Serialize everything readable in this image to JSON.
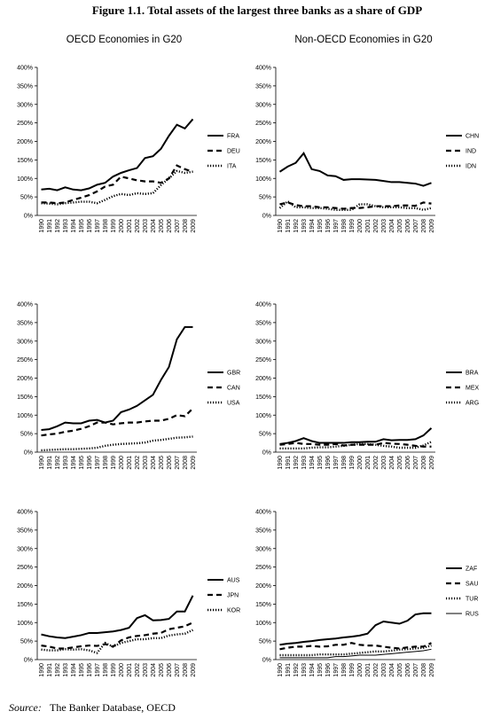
{
  "title": "Figure 1.1. Total assets of the largest three banks as a share of GDP",
  "column_titles": [
    "OECD Economies in G20",
    "Non-OECD Economies in G20"
  ],
  "source_label": "Source:",
  "source": "The Banker Database, OECD",
  "chart_data": [
    {
      "type": "line",
      "categories": [
        "1990",
        "1991",
        "1992",
        "1993",
        "1994",
        "1995",
        "1996",
        "1997",
        "1998",
        "1999",
        "2000",
        "2001",
        "2002",
        "2003",
        "2004",
        "2005",
        "2006",
        "2007",
        "2008",
        "2009"
      ],
      "ylim": [
        0,
        400
      ],
      "yticks": [
        {
          "value": 0,
          "label": "0%"
        },
        {
          "value": 50,
          "label": "50%"
        },
        {
          "value": 100,
          "label": "100%"
        },
        {
          "value": 150,
          "label": "150%"
        },
        {
          "value": 200,
          "label": "200%"
        },
        {
          "value": 250,
          "label": "250%"
        },
        {
          "value": 300,
          "label": "300%"
        },
        {
          "value": 350,
          "label": "350%"
        },
        {
          "value": 400,
          "label": "400%"
        }
      ],
      "series": [
        {
          "name": "FRA",
          "color": "#000000",
          "style": "solid",
          "values": [
            70,
            72,
            68,
            76,
            70,
            68,
            73,
            83,
            88,
            105,
            115,
            122,
            128,
            155,
            160,
            180,
            215,
            245,
            235,
            260
          ]
        },
        {
          "name": "DEU",
          "color": "#000000",
          "style": "dashed",
          "values": [
            35,
            35,
            33,
            35,
            42,
            48,
            55,
            65,
            78,
            83,
            105,
            100,
            95,
            92,
            92,
            88,
            100,
            135,
            125,
            118
          ]
        },
        {
          "name": "ITA",
          "color": "#000000",
          "style": "dotted",
          "values": [
            33,
            32,
            30,
            33,
            35,
            37,
            37,
            33,
            42,
            52,
            58,
            55,
            60,
            58,
            60,
            82,
            100,
            120,
            115,
            118
          ]
        }
      ]
    },
    {
      "type": "line",
      "categories": [
        "1990",
        "1991",
        "1992",
        "1993",
        "1994",
        "1995",
        "1996",
        "1997",
        "1998",
        "1999",
        "2000",
        "2001",
        "2002",
        "2003",
        "2004",
        "2005",
        "2006",
        "2007",
        "2008",
        "2009"
      ],
      "ylim": [
        0,
        400
      ],
      "yticks": [
        {
          "value": 0,
          "label": "0%"
        },
        {
          "value": 50,
          "label": "50%"
        },
        {
          "value": 100,
          "label": "100%"
        },
        {
          "value": 150,
          "label": "150%"
        },
        {
          "value": 200,
          "label": "200%"
        },
        {
          "value": 250,
          "label": "250%"
        },
        {
          "value": 300,
          "label": "300%"
        },
        {
          "value": 350,
          "label": "350%"
        },
        {
          "value": 400,
          "label": "400%"
        }
      ],
      "series": [
        {
          "name": "CHN",
          "color": "#000000",
          "style": "solid",
          "values": [
            118,
            132,
            142,
            168,
            125,
            120,
            108,
            106,
            96,
            98,
            98,
            97,
            96,
            93,
            90,
            90,
            88,
            86,
            80,
            88
          ]
        },
        {
          "name": "IND",
          "color": "#000000",
          "style": "dashed",
          "values": [
            30,
            35,
            28,
            25,
            25,
            22,
            22,
            20,
            18,
            20,
            20,
            22,
            25,
            25,
            25,
            27,
            27,
            26,
            35,
            32
          ]
        },
        {
          "name": "IDN",
          "color": "#000000",
          "style": "dotted",
          "values": [
            20,
            38,
            22,
            22,
            20,
            20,
            18,
            15,
            15,
            15,
            30,
            30,
            25,
            22,
            22,
            22,
            20,
            20,
            15,
            20
          ]
        }
      ]
    },
    {
      "type": "line",
      "categories": [
        "1990",
        "1991",
        "1992",
        "1993",
        "1994",
        "1995",
        "1996",
        "1997",
        "1998",
        "1999",
        "2000",
        "2001",
        "2002",
        "2003",
        "2004",
        "2005",
        "2006",
        "2007",
        "2008",
        "2009"
      ],
      "ylim": [
        0,
        400
      ],
      "yticks": [
        {
          "value": 0,
          "label": "0%"
        },
        {
          "value": 50,
          "label": "50%"
        },
        {
          "value": 100,
          "label": "100%"
        },
        {
          "value": 150,
          "label": "150%"
        },
        {
          "value": 200,
          "label": "200%"
        },
        {
          "value": 250,
          "label": "250%"
        },
        {
          "value": 300,
          "label": "300%"
        },
        {
          "value": 350,
          "label": "350%"
        },
        {
          "value": 400,
          "label": "400%"
        }
      ],
      "series": [
        {
          "name": "GBR",
          "color": "#000000",
          "style": "solid",
          "values": [
            60,
            62,
            70,
            80,
            78,
            78,
            85,
            87,
            80,
            85,
            108,
            115,
            125,
            140,
            155,
            195,
            230,
            305,
            338,
            338
          ]
        },
        {
          "name": "CAN",
          "color": "#000000",
          "style": "dashed",
          "values": [
            45,
            48,
            50,
            55,
            58,
            63,
            70,
            80,
            80,
            75,
            78,
            80,
            80,
            83,
            85,
            85,
            90,
            100,
            97,
            118
          ]
        },
        {
          "name": "USA",
          "color": "#000000",
          "style": "dotted",
          "values": [
            5,
            6,
            7,
            8,
            8,
            9,
            10,
            12,
            17,
            20,
            22,
            23,
            24,
            26,
            31,
            33,
            36,
            39,
            40,
            42
          ]
        }
      ]
    },
    {
      "type": "line",
      "categories": [
        "1990",
        "1991",
        "1992",
        "1993",
        "1994",
        "1995",
        "1996",
        "1997",
        "1998",
        "1999",
        "2000",
        "2001",
        "2002",
        "2003",
        "2004",
        "2005",
        "2006",
        "2007",
        "2008",
        "2009"
      ],
      "ylim": [
        0,
        400
      ],
      "yticks": [
        {
          "value": 0,
          "label": "0%"
        },
        {
          "value": 50,
          "label": "50%"
        },
        {
          "value": 100,
          "label": "100%"
        },
        {
          "value": 150,
          "label": "150%"
        },
        {
          "value": 200,
          "label": "200%"
        },
        {
          "value": 250,
          "label": "250%"
        },
        {
          "value": 300,
          "label": "300%"
        },
        {
          "value": 350,
          "label": "350%"
        },
        {
          "value": 400,
          "label": "400%"
        }
      ],
      "series": [
        {
          "name": "BRA",
          "color": "#000000",
          "style": "solid",
          "values": [
            22,
            25,
            30,
            38,
            30,
            25,
            25,
            25,
            25,
            27,
            27,
            28,
            28,
            35,
            32,
            33,
            33,
            35,
            45,
            65
          ]
        },
        {
          "name": "MEX",
          "color": "#000000",
          "style": "dashed",
          "values": [
            20,
            22,
            25,
            22,
            22,
            20,
            20,
            22,
            18,
            20,
            20,
            20,
            20,
            25,
            23,
            22,
            20,
            17,
            15,
            15
          ]
        },
        {
          "name": "ARG",
          "color": "#000000",
          "style": "dotted",
          "values": [
            10,
            10,
            10,
            10,
            12,
            13,
            13,
            15,
            17,
            20,
            22,
            22,
            20,
            17,
            15,
            12,
            12,
            12,
            18,
            28
          ]
        }
      ]
    },
    {
      "type": "line",
      "categories": [
        "1990",
        "1991",
        "1992",
        "1993",
        "1994",
        "1995",
        "1996",
        "1997",
        "1998",
        "1999",
        "2000",
        "2001",
        "2002",
        "2003",
        "2004",
        "2005",
        "2006",
        "2007",
        "2008",
        "2009"
      ],
      "ylim": [
        0,
        400
      ],
      "yticks": [
        {
          "value": 0,
          "label": "0%"
        },
        {
          "value": 50,
          "label": "50%"
        },
        {
          "value": 100,
          "label": "100%"
        },
        {
          "value": 150,
          "label": "150%"
        },
        {
          "value": 200,
          "label": "200%"
        },
        {
          "value": 250,
          "label": "250%"
        },
        {
          "value": 300,
          "label": "300%"
        },
        {
          "value": 350,
          "label": "350%"
        },
        {
          "value": 400,
          "label": "400%"
        }
      ],
      "series": [
        {
          "name": "AUS",
          "color": "#000000",
          "style": "solid",
          "values": [
            68,
            63,
            60,
            58,
            62,
            66,
            72,
            72,
            74,
            76,
            80,
            86,
            112,
            120,
            106,
            107,
            110,
            130,
            130,
            173
          ]
        },
        {
          "name": "JPN",
          "color": "#000000",
          "style": "dashed",
          "values": [
            38,
            35,
            30,
            30,
            33,
            36,
            38,
            37,
            42,
            35,
            52,
            60,
            64,
            66,
            70,
            72,
            82,
            86,
            90,
            100
          ]
        },
        {
          "name": "KOR",
          "color": "#000000",
          "style": "dotted",
          "values": [
            27,
            25,
            25,
            28,
            27,
            28,
            25,
            18,
            45,
            35,
            45,
            50,
            55,
            55,
            58,
            58,
            65,
            68,
            70,
            80
          ]
        }
      ]
    },
    {
      "type": "line",
      "categories": [
        "1990",
        "1991",
        "1992",
        "1993",
        "1994",
        "1995",
        "1996",
        "1997",
        "1998",
        "1999",
        "2000",
        "2001",
        "2002",
        "2003",
        "2004",
        "2005",
        "2006",
        "2007",
        "2008",
        "2009"
      ],
      "ylim": [
        0,
        400
      ],
      "yticks": [
        {
          "value": 0,
          "label": "0%"
        },
        {
          "value": 50,
          "label": "50%"
        },
        {
          "value": 100,
          "label": "100%"
        },
        {
          "value": 150,
          "label": "150%"
        },
        {
          "value": 200,
          "label": "200%"
        },
        {
          "value": 250,
          "label": "250%"
        },
        {
          "value": 300,
          "label": "300%"
        },
        {
          "value": 350,
          "label": "350%"
        },
        {
          "value": 400,
          "label": "400%"
        }
      ],
      "series": [
        {
          "name": "ZAF",
          "color": "#000000",
          "style": "solid",
          "values": [
            40,
            43,
            45,
            48,
            50,
            53,
            55,
            57,
            60,
            62,
            65,
            70,
            93,
            103,
            100,
            97,
            105,
            122,
            125,
            125
          ]
        },
        {
          "name": "SAU",
          "color": "#000000",
          "style": "dashed",
          "values": [
            28,
            32,
            35,
            35,
            37,
            35,
            36,
            40,
            40,
            45,
            40,
            38,
            38,
            35,
            32,
            30,
            33,
            35,
            35,
            45
          ]
        },
        {
          "name": "TUR",
          "color": "#000000",
          "style": "dotted",
          "values": [
            12,
            12,
            12,
            12,
            12,
            14,
            14,
            14,
            14,
            16,
            18,
            20,
            22,
            22,
            24,
            27,
            28,
            30,
            32,
            38
          ]
        },
        {
          "name": "RUS",
          "color": "#000000",
          "style": "thin",
          "values": [
            5,
            5,
            5,
            5,
            5,
            5,
            5,
            8,
            8,
            10,
            12,
            12,
            12,
            14,
            16,
            18,
            20,
            22,
            24,
            28
          ]
        }
      ]
    }
  ]
}
